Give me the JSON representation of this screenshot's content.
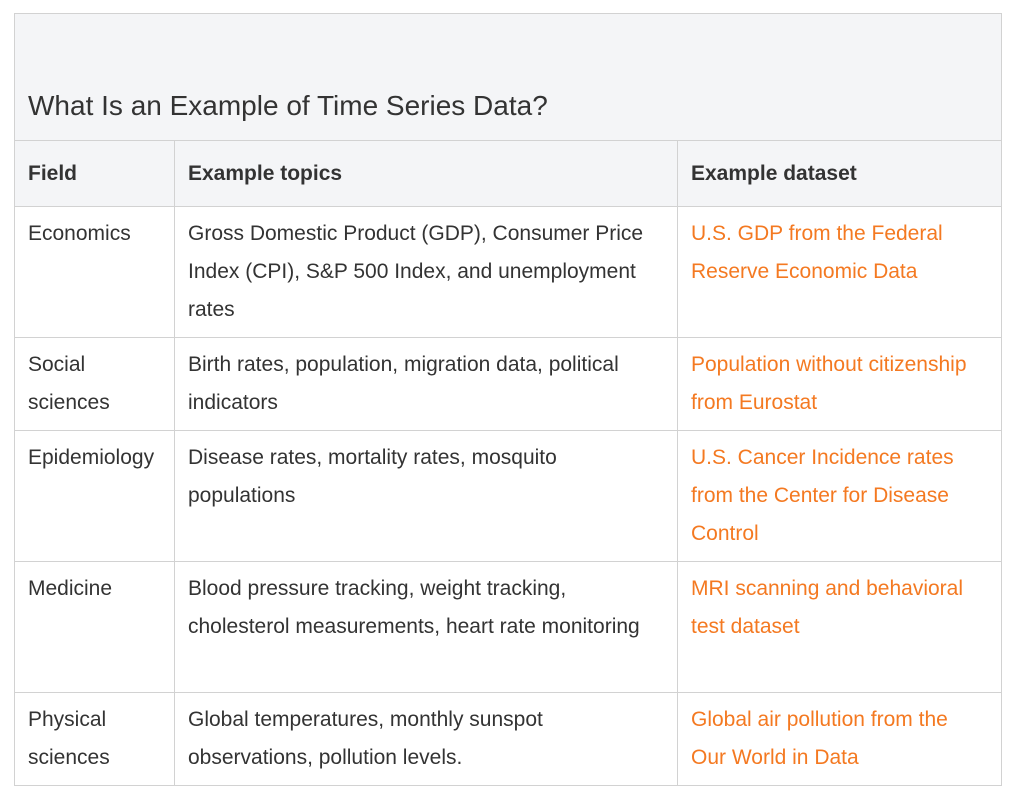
{
  "title": "What Is an Example of Time Series Data?",
  "headers": [
    "Field",
    "Example topics",
    "Example dataset"
  ],
  "rows": [
    {
      "field": "Economics",
      "topics": "Gross Domestic Product (GDP), Consumer Price Index (CPI), S&P 500 Index, and unemployment rates",
      "dataset": "U.S. GDP from the Federal Reserve Economic Data"
    },
    {
      "field": "Social sciences",
      "topics": "Birth rates, population, migration data, political indicators",
      "dataset": "Population without citizenship from Eurostat"
    },
    {
      "field": "Epidemiology",
      "topics": "Disease rates, mortality rates, mosquito populations",
      "dataset": "U.S. Cancer Incidence rates from the Center for Disease Control"
    },
    {
      "field": "Medicine",
      "topics": "Blood pressure tracking, weight tracking, cholesterol measurements, heart rate monitoring",
      "dataset": "MRI scanning and behavioral test dataset"
    },
    {
      "field": "Physical sciences",
      "topics": "Global temperatures, monthly sunspot observations, pollution levels.",
      "dataset": "Global air pollution from the Our World in Data"
    }
  ],
  "colors": {
    "link": "#f47921",
    "header_bg": "#f4f5f7",
    "border": "#d2d2d2",
    "text": "#333333"
  }
}
